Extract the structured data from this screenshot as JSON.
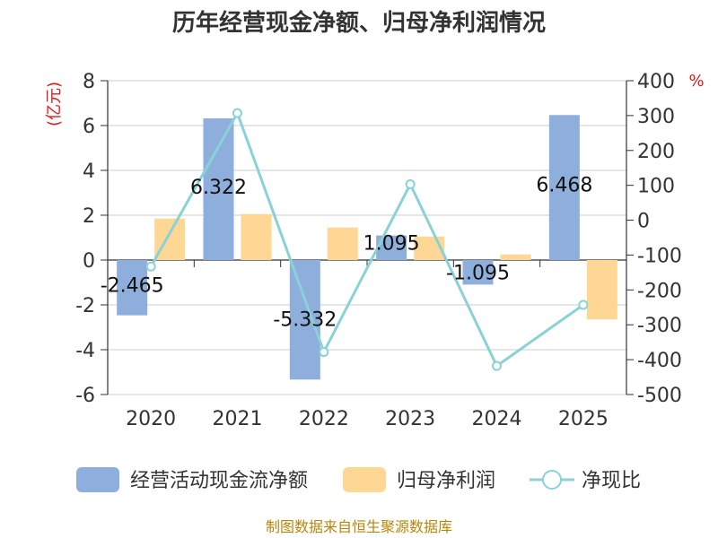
{
  "chart_data": {
    "type": "bar",
    "title": "历年经营现金净额、归母净利润情况",
    "categories": [
      "2020",
      "2021",
      "2022",
      "2023",
      "2024",
      "2025"
    ],
    "series": [
      {
        "name": "经营活动现金流净额",
        "type": "bar",
        "axis": "left",
        "color": "#8eaedb",
        "values": [
          -2.465,
          6.322,
          -5.332,
          1.095,
          -1.095,
          6.468
        ],
        "labels": [
          "-2.465",
          "6.322",
          "-5.332",
          "1.095",
          "-1.095",
          "6.468"
        ]
      },
      {
        "name": "归母净利润",
        "type": "bar",
        "axis": "left",
        "color": "#ffd794",
        "values": [
          1.85,
          2.05,
          1.45,
          1.05,
          0.25,
          -2.65
        ]
      },
      {
        "name": "净现比",
        "type": "line",
        "axis": "right",
        "color": "#89d2d8",
        "values": [
          -133,
          307,
          -378,
          103,
          -418,
          -243
        ]
      }
    ],
    "y_left": {
      "unit": "(亿元)",
      "ylim": [
        -6,
        8
      ],
      "ticks": [
        "8",
        "6",
        "4",
        "2",
        "0",
        "-2",
        "-4",
        "-6"
      ]
    },
    "y_right": {
      "unit": "%",
      "ylim": [
        -500,
        400
      ],
      "ticks": [
        "400",
        "300",
        "200",
        "100",
        "0",
        "-100",
        "-200",
        "-300",
        "-400",
        "-500"
      ]
    },
    "grid": true,
    "legend_position": "bottom",
    "source": "制图数据来自恒生聚源数据库"
  }
}
